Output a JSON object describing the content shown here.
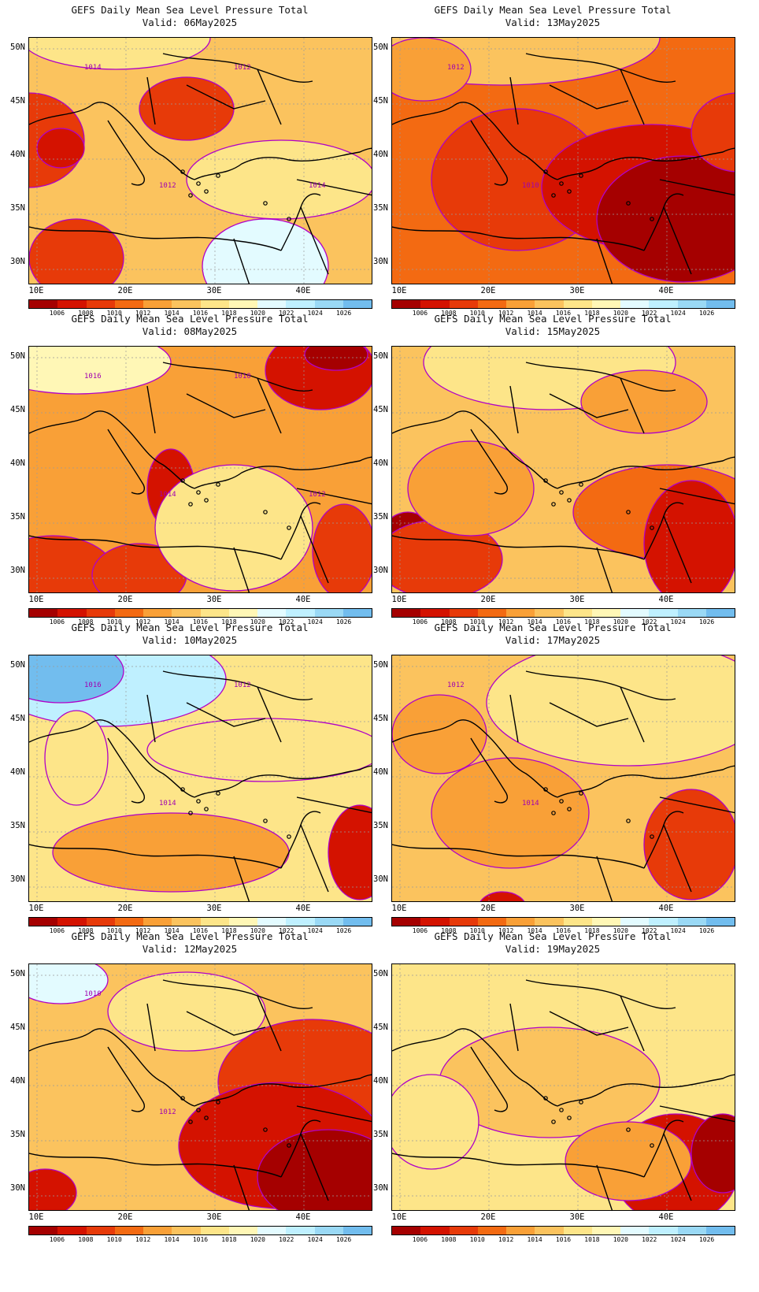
{
  "title": "GEFS Daily Mean Sea Level Pressure Total",
  "panels": [
    {
      "valid": "Valid: 06May2025",
      "contours": [
        "1014",
        "1012",
        "1012",
        "1014"
      ]
    },
    {
      "valid": "Valid: 13May2025",
      "contours": [
        "1012",
        "1010"
      ]
    },
    {
      "valid": "Valid: 08May2025",
      "contours": [
        "1016",
        "1014",
        "1010",
        "1012"
      ]
    },
    {
      "valid": "Valid: 15May2025",
      "contours": []
    },
    {
      "valid": "Valid: 10May2025",
      "contours": [
        "1016",
        "1014",
        "1012"
      ]
    },
    {
      "valid": "Valid: 17May2025",
      "contours": [
        "1012",
        "1014"
      ]
    },
    {
      "valid": "Valid: 12May2025",
      "contours": [
        "1010",
        "1012"
      ]
    },
    {
      "valid": "Valid: 19May2025",
      "contours": []
    }
  ],
  "axes": {
    "lat_labels": [
      "50N",
      "45N",
      "40N",
      "35N",
      "30N"
    ],
    "lon_labels": [
      "10E",
      "20E",
      "30E",
      "40E"
    ]
  },
  "colorbar": {
    "labels": [
      "1006",
      "1008",
      "1010",
      "1012",
      "1014",
      "1016",
      "1018",
      "1020",
      "1022",
      "1024",
      "1026"
    ],
    "colors": [
      "#a50000",
      "#d41200",
      "#e73a09",
      "#f36a12",
      "#f9a037",
      "#fbc35e",
      "#fde589",
      "#fff7b6",
      "#e3fbff",
      "#bff0ff",
      "#9ad9f5",
      "#72bdee",
      "#4a9df0",
      "#2a7ae8",
      "#1055d8"
    ]
  }
}
